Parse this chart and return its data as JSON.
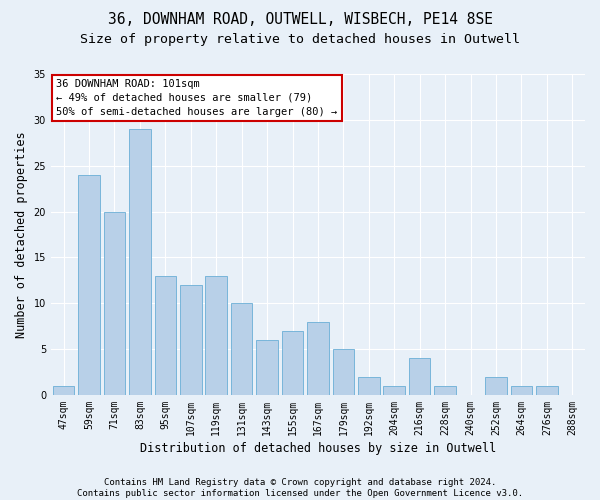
{
  "title1": "36, DOWNHAM ROAD, OUTWELL, WISBECH, PE14 8SE",
  "title2": "Size of property relative to detached houses in Outwell",
  "xlabel": "Distribution of detached houses by size in Outwell",
  "ylabel": "Number of detached properties",
  "footer1": "Contains HM Land Registry data © Crown copyright and database right 2024.",
  "footer2": "Contains public sector information licensed under the Open Government Licence v3.0.",
  "annotation_line1": "36 DOWNHAM ROAD: 101sqm",
  "annotation_line2": "← 49% of detached houses are smaller (79)",
  "annotation_line3": "50% of semi-detached houses are larger (80) →",
  "bar_labels": [
    "47sqm",
    "59sqm",
    "71sqm",
    "83sqm",
    "95sqm",
    "107sqm",
    "119sqm",
    "131sqm",
    "143sqm",
    "155sqm",
    "167sqm",
    "179sqm",
    "192sqm",
    "204sqm",
    "216sqm",
    "228sqm",
    "240sqm",
    "252sqm",
    "264sqm",
    "276sqm",
    "288sqm"
  ],
  "bar_values": [
    1,
    24,
    20,
    29,
    13,
    12,
    13,
    10,
    6,
    7,
    8,
    5,
    2,
    1,
    4,
    1,
    0,
    2,
    1,
    1,
    0
  ],
  "bar_color": "#b8d0e8",
  "bar_edge_color": "#6aaed6",
  "ylim": [
    0,
    35
  ],
  "yticks": [
    0,
    5,
    10,
    15,
    20,
    25,
    30,
    35
  ],
  "bg_color": "#e8f0f8",
  "annotation_box_color": "#ffffff",
  "annotation_box_edge": "#cc0000",
  "grid_color": "#ffffff",
  "title1_fontsize": 10.5,
  "title2_fontsize": 9.5,
  "tick_fontsize": 7,
  "ylabel_fontsize": 8.5,
  "xlabel_fontsize": 8.5,
  "annotation_fontsize": 7.5,
  "footer_fontsize": 6.5
}
